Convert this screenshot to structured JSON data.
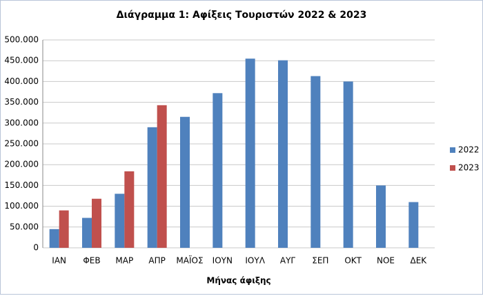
{
  "chart_data": {
    "type": "bar",
    "title": "Διάγραμμα 1: Αφίξεις Τουριστών 2022 & 2023",
    "x_label": "Μήνας άφιξης",
    "categories": [
      "ΙΑΝ",
      "ΦΕΒ",
      "ΜΑΡ",
      "ΑΠΡ",
      "ΜΑΪΟΣ",
      "ΙΟΥΝ",
      "ΙΟΥΛ",
      "ΑΥΓ",
      "ΣΕΠ",
      "ΟΚΤ",
      "ΝΟΕ",
      "ΔΕΚ"
    ],
    "series": [
      {
        "name": "2022",
        "color": "#4f81bd",
        "values": [
          45000,
          72000,
          130000,
          290000,
          315000,
          372000,
          455000,
          451000,
          413000,
          400000,
          150000,
          110000
        ]
      },
      {
        "name": "2023",
        "color": "#c0504d",
        "values": [
          90000,
          118000,
          184000,
          343000,
          null,
          null,
          null,
          null,
          null,
          null,
          null,
          null
        ]
      }
    ],
    "ylim": [
      0,
      500000
    ],
    "yticks": [
      0,
      {
        "value": 50000,
        "label": "50.000"
      },
      {
        "value": 100000,
        "label": "100.000"
      },
      {
        "value": 150000,
        "label": "150.000"
      },
      {
        "value": 200000,
        "label": "200.000"
      },
      {
        "value": 250000,
        "label": "250.000"
      },
      {
        "value": 300000,
        "label": "300.000"
      },
      {
        "value": 350000,
        "label": "350.000"
      },
      {
        "value": 400000,
        "label": "400.000"
      },
      {
        "value": 450000,
        "label": "450.000"
      },
      {
        "value": 500000,
        "label": "500.000"
      }
    ],
    "grid": true,
    "legend": "right"
  }
}
